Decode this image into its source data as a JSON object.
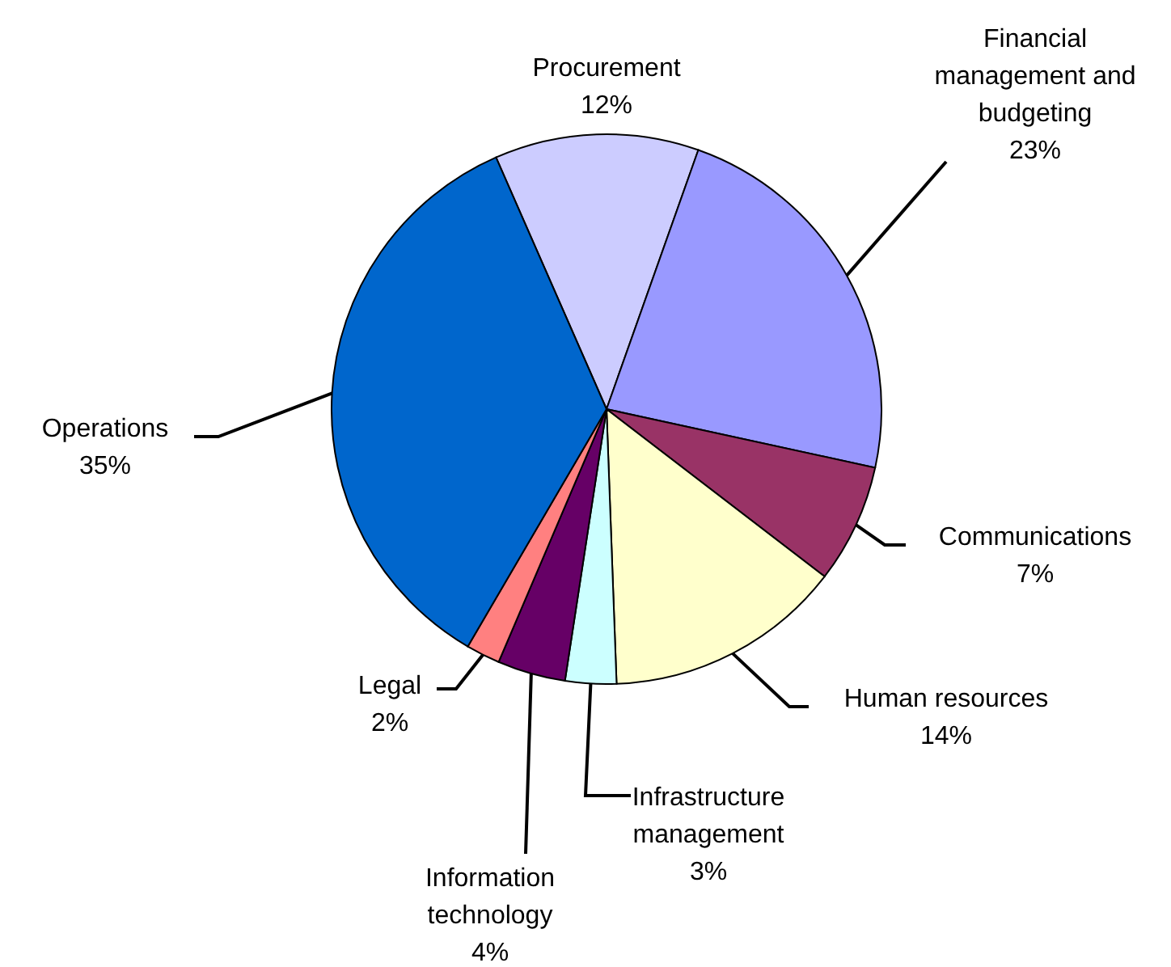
{
  "chart_data": {
    "type": "pie",
    "categories": [
      "Procurement",
      "Financial management and budgeting",
      "Communications",
      "Human resources",
      "Infrastructure management",
      "Information technology",
      "Legal",
      "Operations"
    ],
    "values": [
      12,
      23,
      7,
      14,
      3,
      4,
      2,
      35
    ],
    "colors": [
      "#ccccff",
      "#9999ff",
      "#993366",
      "#ffffcc",
      "#ccffff",
      "#660066",
      "#ff8080",
      "#0066cc"
    ],
    "value_labels": [
      "12%",
      "23%",
      "7%",
      "14%",
      "3%",
      "4%",
      "2%",
      "35%"
    ]
  }
}
